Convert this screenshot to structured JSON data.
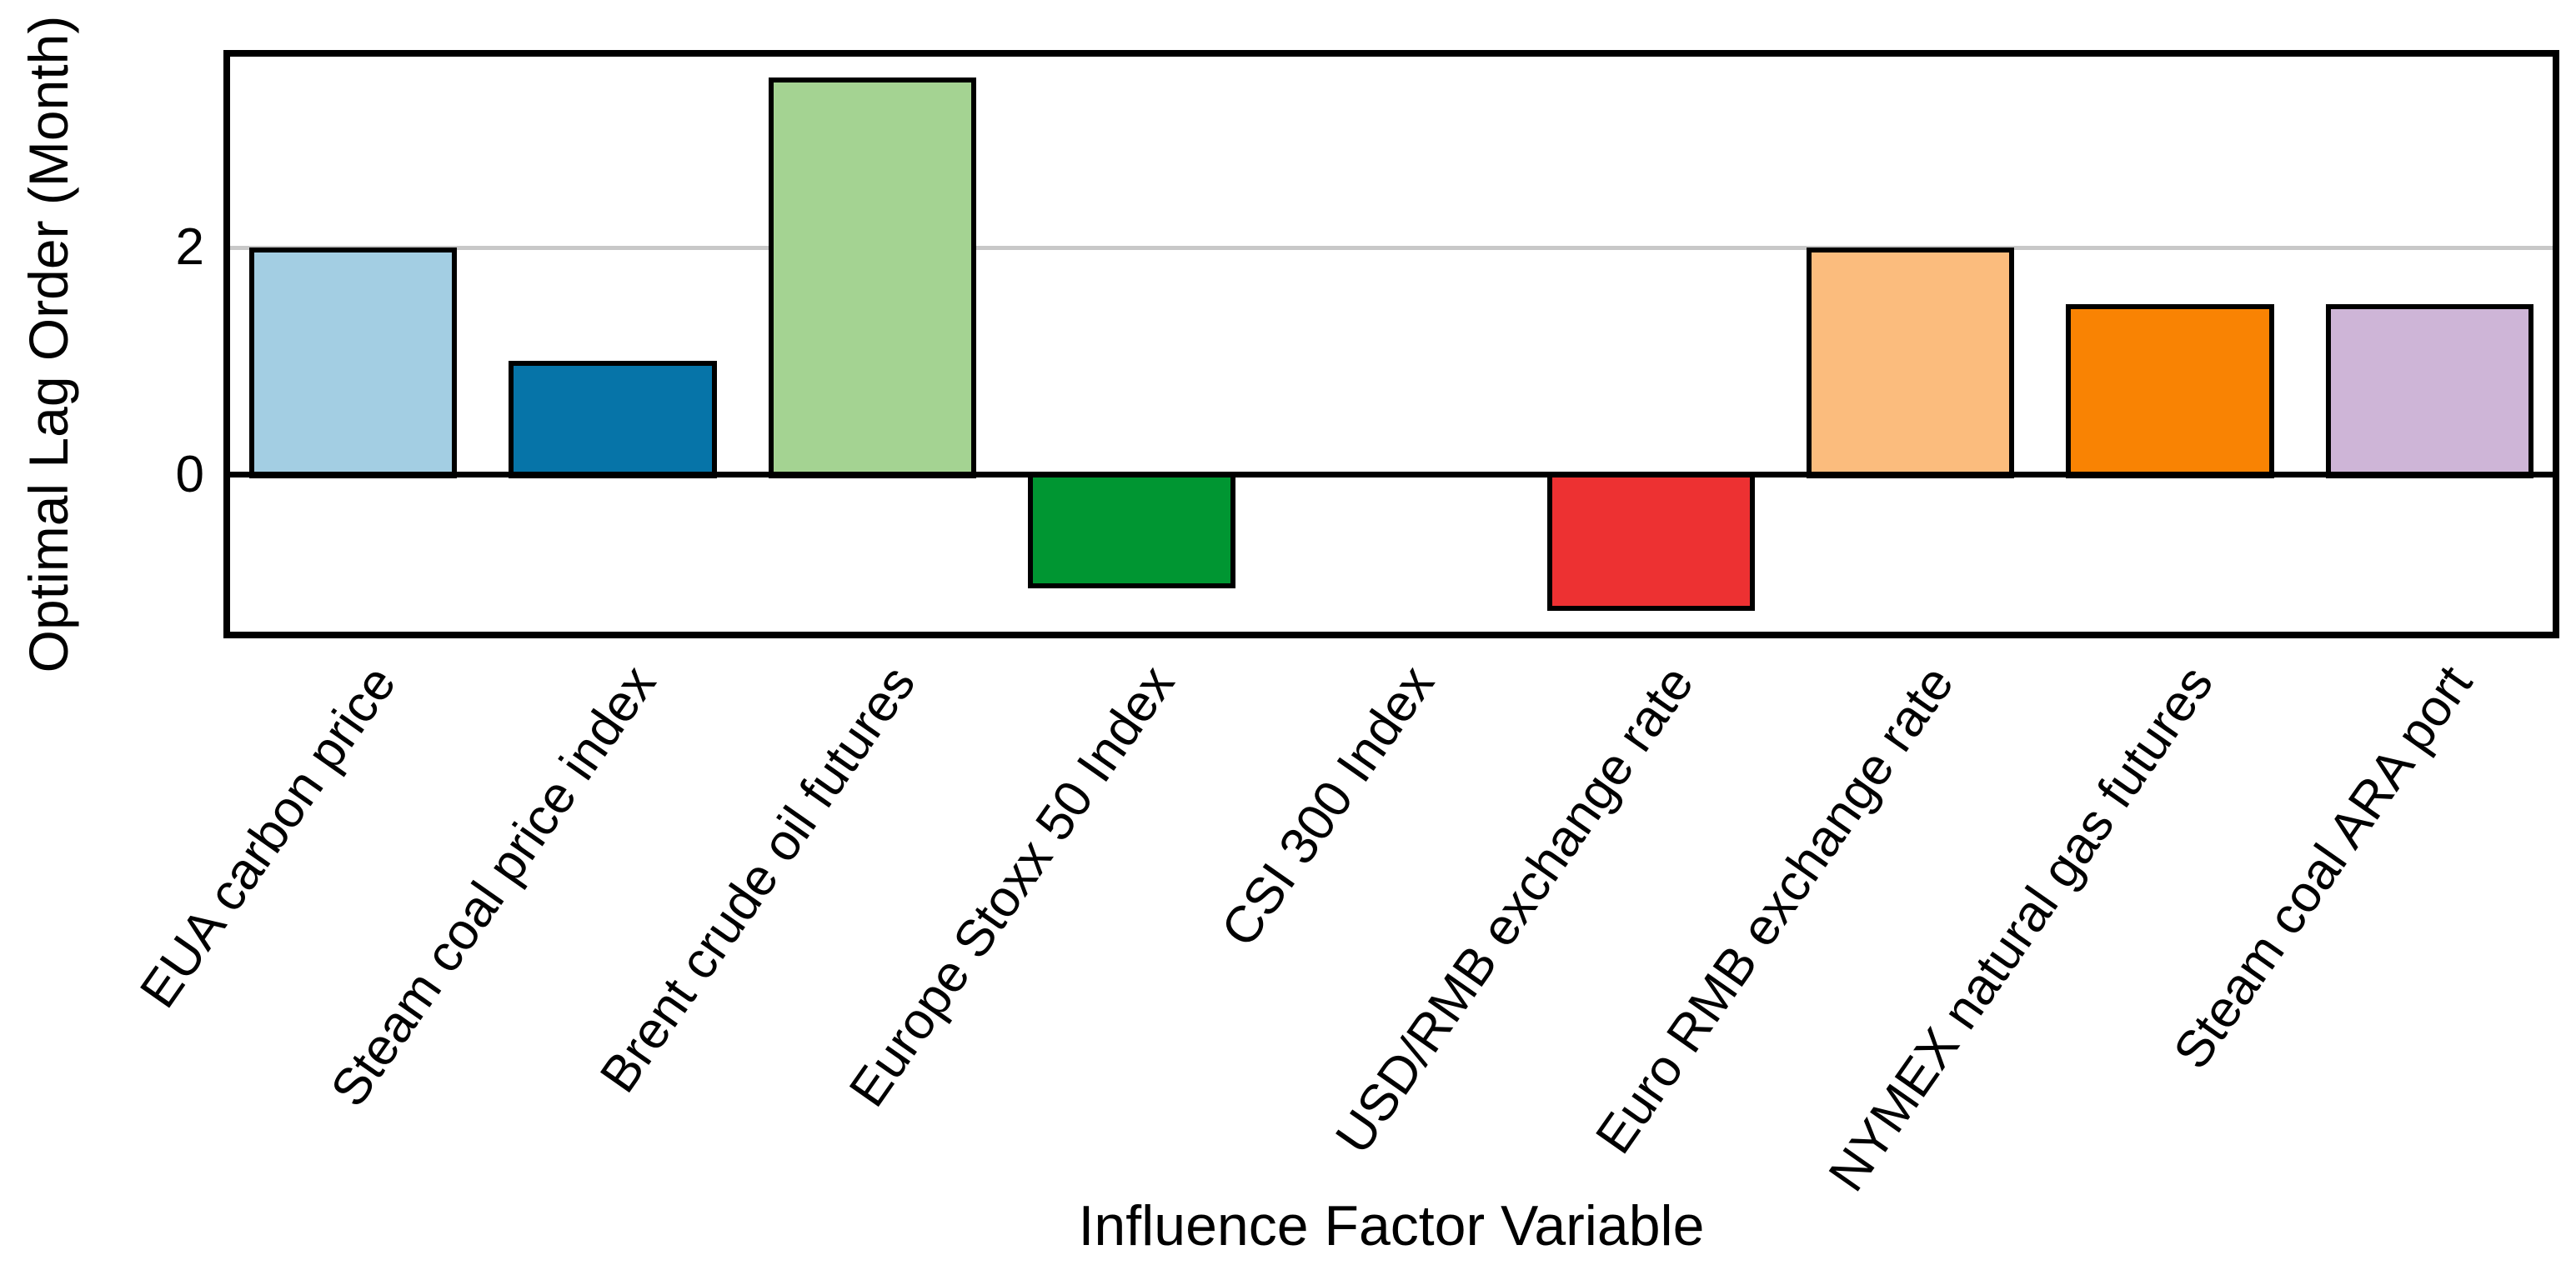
{
  "chart_data": {
    "type": "bar",
    "title": "",
    "xlabel": "Influence Factor Variable",
    "ylabel": "Optimal Lag Order (Month)",
    "categories": [
      "EUA carbon price",
      "Steam coal price index",
      "Brent crude oil futures",
      "Europe Stoxx 50 Index",
      "CSI 300 Index",
      "USD/RMB exchange rate",
      "Euro RMB exchange rate",
      "NYMEX natural gas futures",
      "Steam coal ARA port"
    ],
    "values": [
      2,
      1,
      3.5,
      -1,
      0,
      -1.2,
      2,
      1.5,
      1.5
    ],
    "bar_colors": [
      "#a3cee3",
      "#0674a8",
      "#a4d392",
      "#009632",
      null,
      "#ed3132",
      "#fbbc7d",
      "#f98303",
      "#ceb5d7"
    ],
    "bar_edge_color": "#000000",
    "ylim": [
      -1.44,
      3.74
    ],
    "yticks": [
      0,
      2
    ],
    "ytick_labels": [
      "0",
      "2"
    ],
    "gridline_y": [
      2
    ],
    "gridline_color": "#c8c8c8",
    "zero_line_color": "#000000",
    "x_tick_rotation_deg": 55,
    "bar_width_fraction": 0.8,
    "legend": "none",
    "background": "#ffffff"
  }
}
